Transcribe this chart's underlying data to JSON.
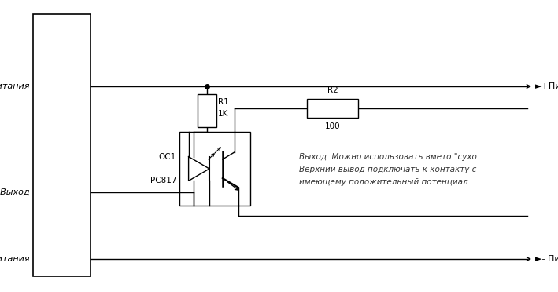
{
  "bg_color": "#ffffff",
  "line_color": "#000000",
  "plus_label": "+питания",
  "out_label": "OUT Выход",
  "minus_label": "- питания",
  "plus_right_label": "►+Питания",
  "minus_right_label": "►- Питания",
  "r1_label_top": "R1",
  "r1_label_bot": "1K",
  "r2_label_top": "R2",
  "r2_label_bot": "100",
  "oc1_label": "OC1",
  "pc817_label": "PC817",
  "annotation_line1": "Выход. Можно использовать вмето \"сухо",
  "annotation_line2": "Верхний вывод подключать к контакту с",
  "annotation_line3": "имеющему положительный потенциал"
}
